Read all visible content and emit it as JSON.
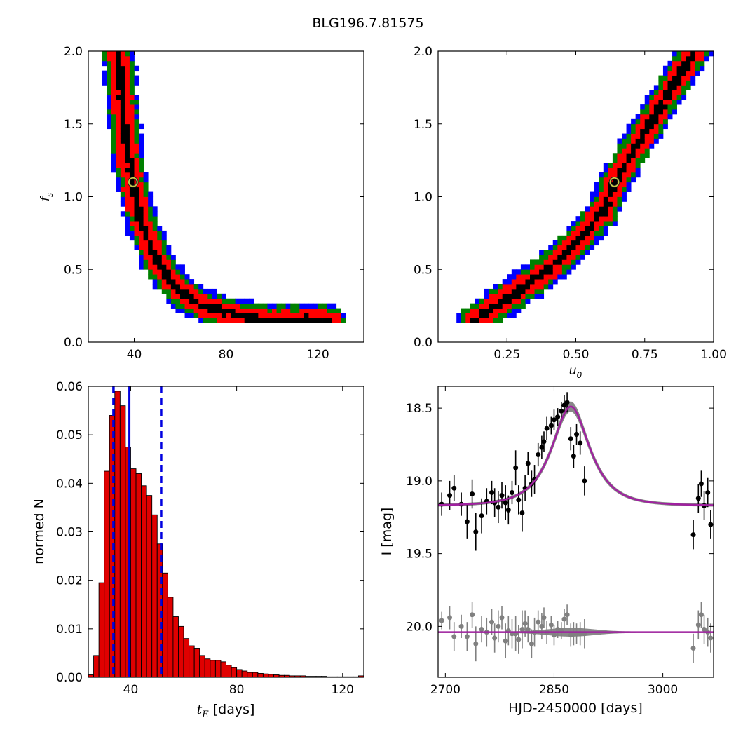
{
  "figure": {
    "title": "BLG196.7.81575"
  },
  "colors": {
    "sigma1": "#000000",
    "sigma2": "#ff0000",
    "sigma3": "#008000",
    "sigma4": "#0000ff",
    "marker": "#c8c84a",
    "bar": "#e00000",
    "median": "#0000e0",
    "model": "#a020a0",
    "band": "#888888",
    "data_black": "#000000",
    "data_gray": "#808080"
  },
  "chart_data": [
    {
      "id": "tE-fs",
      "type": "heatmap",
      "xlabel": "",
      "ylabel": "f_s",
      "xlim": [
        20,
        140
      ],
      "ylim": [
        0,
        2.0
      ],
      "xticks": [
        "40",
        "80",
        "120"
      ],
      "xtick_values": [
        40,
        80,
        120
      ],
      "yticks": [
        "0.0",
        "0.5",
        "1.0",
        "1.5",
        "2.0"
      ],
      "ytick_values": [
        0,
        0.5,
        1.0,
        1.5,
        2.0
      ],
      "ridge": [
        [
          33,
          2.0
        ],
        [
          35,
          1.6
        ],
        [
          37,
          1.3
        ],
        [
          39,
          1.1
        ],
        [
          42,
          0.9
        ],
        [
          46,
          0.7
        ],
        [
          52,
          0.5
        ],
        [
          60,
          0.35
        ],
        [
          70,
          0.25
        ],
        [
          85,
          0.18
        ],
        [
          100,
          0.15
        ],
        [
          125,
          0.15
        ]
      ],
      "best_fit": [
        39.5,
        1.1
      ]
    },
    {
      "id": "u0-fs",
      "type": "heatmap",
      "xlabel": "u_0",
      "ylabel": "",
      "xlim": [
        0,
        1.0
      ],
      "ylim": [
        0,
        2.0
      ],
      "xticks": [
        "0.25",
        "0.50",
        "0.75",
        "1.00"
      ],
      "xtick_values": [
        0.25,
        0.5,
        0.75,
        1.0
      ],
      "yticks": [
        "0.0",
        "0.5",
        "1.0",
        "1.5",
        "2.0"
      ],
      "ytick_values": [
        0,
        0.5,
        1.0,
        1.5,
        2.0
      ],
      "ridge": [
        [
          0.13,
          0.15
        ],
        [
          0.25,
          0.3
        ],
        [
          0.4,
          0.5
        ],
        [
          0.5,
          0.68
        ],
        [
          0.6,
          0.9
        ],
        [
          0.64,
          1.1
        ],
        [
          0.72,
          1.35
        ],
        [
          0.8,
          1.6
        ],
        [
          0.88,
          1.85
        ],
        [
          0.93,
          2.0
        ]
      ],
      "best_fit": [
        0.64,
        1.1
      ]
    },
    {
      "id": "tE-hist",
      "type": "bar",
      "xlabel": "t_E",
      "xlabel_unit": "[days]",
      "ylabel": "normed N",
      "xlim": [
        24,
        128
      ],
      "ylim": [
        0,
        0.06
      ],
      "xticks": [
        "40",
        "80",
        "120"
      ],
      "xtick_values": [
        40,
        80,
        120
      ],
      "yticks": [
        "0.00",
        "0.01",
        "0.02",
        "0.03",
        "0.04",
        "0.05",
        "0.06"
      ],
      "ytick_values": [
        0,
        0.01,
        0.02,
        0.03,
        0.04,
        0.05,
        0.06
      ],
      "bin_start": 24,
      "bin_width": 2,
      "values": [
        0.0005,
        0.0045,
        0.0195,
        0.0425,
        0.054,
        0.059,
        0.056,
        0.0475,
        0.043,
        0.042,
        0.0395,
        0.0375,
        0.0335,
        0.0275,
        0.0215,
        0.0165,
        0.0125,
        0.0105,
        0.008,
        0.0065,
        0.006,
        0.0045,
        0.0038,
        0.0035,
        0.0035,
        0.0032,
        0.0025,
        0.002,
        0.0016,
        0.0013,
        0.001,
        0.001,
        0.0008,
        0.0007,
        0.0006,
        0.0005,
        0.0004,
        0.0004,
        0.0003,
        0.0003,
        0.0003,
        0.0002,
        0.0002,
        0.0002,
        0.0002,
        0.0001,
        0.0001,
        0.0001,
        0.0001,
        0.0001,
        0.0001,
        0.0003
      ],
      "median": 39.5,
      "bounds": [
        33.5,
        51.5
      ]
    },
    {
      "id": "lightcurve",
      "type": "scatter",
      "xlabel": "HJD-2450000 [days]",
      "ylabel": "I [mag]",
      "xlim": [
        2690,
        3070
      ],
      "ylim": [
        20.35,
        18.35
      ],
      "xticks": [
        "2700",
        "2850",
        "3000"
      ],
      "xtick_values": [
        2700,
        2850,
        3000
      ],
      "yticks": [
        "18.5",
        "19.0",
        "19.5",
        "20.0"
      ],
      "ytick_values": [
        18.5,
        19.0,
        19.5,
        20.0
      ],
      "model": {
        "t0": 2873,
        "tE": 39.5,
        "u0": 0.64,
        "baseline": 19.17
      },
      "points": [
        [
          2695,
          19.16,
          0.08
        ],
        [
          2706,
          19.1,
          0.1
        ],
        [
          2712,
          19.05,
          0.09
        ],
        [
          2722,
          19.16,
          0.08
        ],
        [
          2730,
          19.28,
          0.12
        ],
        [
          2737,
          19.09,
          0.1
        ],
        [
          2742,
          19.35,
          0.13
        ],
        [
          2750,
          19.24,
          0.12
        ],
        [
          2757,
          19.14,
          0.09
        ],
        [
          2764,
          19.08,
          0.08
        ],
        [
          2768,
          19.15,
          0.1
        ],
        [
          2773,
          19.18,
          0.11
        ],
        [
          2778,
          19.1,
          0.09
        ],
        [
          2783,
          19.15,
          0.12
        ],
        [
          2787,
          19.2,
          0.1
        ],
        [
          2792,
          19.08,
          0.08
        ],
        [
          2797,
          18.91,
          0.12
        ],
        [
          2801,
          19.13,
          0.1
        ],
        [
          2806,
          19.22,
          0.13
        ],
        [
          2810,
          19.05,
          0.09
        ],
        [
          2814,
          18.88,
          0.08
        ],
        [
          2819,
          19.02,
          0.09
        ],
        [
          2823,
          18.99,
          0.1
        ],
        [
          2828,
          18.82,
          0.08
        ],
        [
          2833,
          18.77,
          0.08
        ],
        [
          2836,
          18.73,
          0.07
        ],
        [
          2840,
          18.64,
          0.08
        ],
        [
          2846,
          18.62,
          0.06
        ],
        [
          2850,
          18.58,
          0.07
        ],
        [
          2855,
          18.56,
          0.06
        ],
        [
          2860,
          18.52,
          0.06
        ],
        [
          2864,
          18.48,
          0.07
        ],
        [
          2868,
          18.46,
          0.07
        ],
        [
          2873,
          18.71,
          0.08
        ],
        [
          2877,
          18.83,
          0.08
        ],
        [
          2881,
          18.68,
          0.07
        ],
        [
          2886,
          18.74,
          0.08
        ],
        [
          2892,
          19.0,
          0.1
        ],
        [
          3042,
          19.37,
          0.1
        ],
        [
          3049,
          19.12,
          0.1
        ],
        [
          3053,
          19.02,
          0.09
        ],
        [
          3057,
          19.17,
          0.1
        ],
        [
          3062,
          19.08,
          0.1
        ],
        [
          3066,
          19.3,
          0.1
        ]
      ],
      "residuals": [
        [
          2695,
          19.96,
          0.06
        ],
        [
          2706,
          19.94,
          0.08
        ],
        [
          2712,
          20.07,
          0.1
        ],
        [
          2722,
          20.0,
          0.08
        ],
        [
          2730,
          20.07,
          0.1
        ],
        [
          2737,
          19.92,
          0.09
        ],
        [
          2742,
          20.12,
          0.12
        ],
        [
          2750,
          20.02,
          0.09
        ],
        [
          2757,
          20.04,
          0.1
        ],
        [
          2764,
          19.97,
          0.09
        ],
        [
          2768,
          20.08,
          0.1
        ],
        [
          2773,
          20.0,
          0.11
        ],
        [
          2778,
          19.94,
          0.08
        ],
        [
          2783,
          20.1,
          0.12
        ],
        [
          2787,
          20.03,
          0.1
        ],
        [
          2792,
          20.05,
          0.1
        ],
        [
          2797,
          20.05,
          0.12
        ],
        [
          2801,
          20.09,
          0.1
        ],
        [
          2806,
          20.02,
          0.13
        ],
        [
          2810,
          19.98,
          0.09
        ],
        [
          2814,
          20.02,
          0.09
        ],
        [
          2819,
          20.12,
          0.1
        ],
        [
          2823,
          20.04,
          0.1
        ],
        [
          2828,
          19.97,
          0.08
        ],
        [
          2833,
          20.0,
          0.09
        ],
        [
          2836,
          19.94,
          0.07
        ],
        [
          2840,
          20.04,
          0.08
        ],
        [
          2846,
          19.99,
          0.06
        ],
        [
          2850,
          20.06,
          0.07
        ],
        [
          2855,
          20.02,
          0.06
        ],
        [
          2860,
          20.03,
          0.06
        ],
        [
          2864,
          19.95,
          0.07
        ],
        [
          2868,
          19.92,
          0.07
        ],
        [
          2873,
          20.06,
          0.08
        ],
        [
          2877,
          20.05,
          0.08
        ],
        [
          2881,
          20.05,
          0.07
        ],
        [
          2886,
          20.05,
          0.08
        ],
        [
          2892,
          20.05,
          0.1
        ],
        [
          3042,
          20.15,
          0.1
        ],
        [
          3049,
          19.99,
          0.1
        ],
        [
          3053,
          19.92,
          0.09
        ],
        [
          3057,
          20.02,
          0.1
        ],
        [
          3062,
          20.04,
          0.1
        ],
        [
          3066,
          20.08,
          0.1
        ]
      ],
      "residual_baseline": 20.04
    }
  ]
}
